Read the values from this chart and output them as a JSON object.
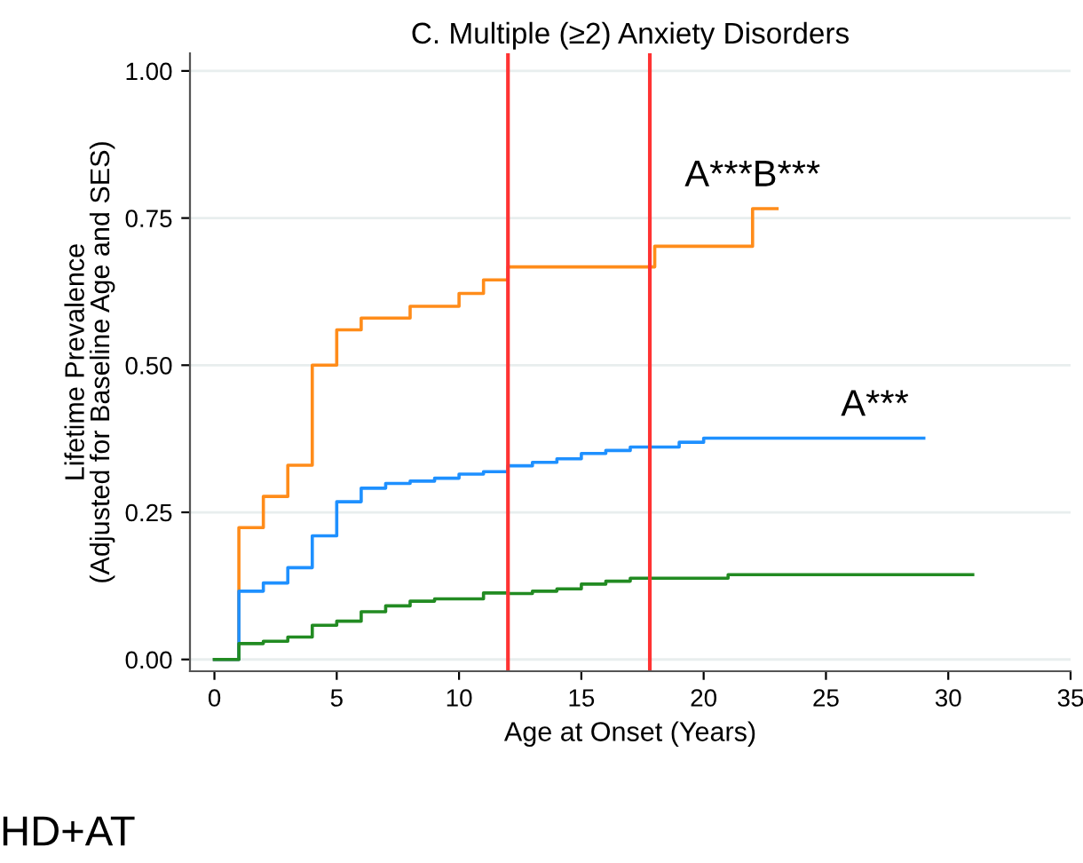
{
  "chart_data": {
    "type": "step",
    "title": "C. Multiple (≥2) Anxiety Disorders",
    "xlabel": "Age at Onset (Years)",
    "ylabel": "Lifetime Prevalence\n(Adjusted for Baseline Age and SES)",
    "xlim": [
      -1,
      35
    ],
    "ylim": [
      -0.02,
      1.03
    ],
    "xticks": [
      0,
      5,
      10,
      15,
      20,
      25,
      30,
      35
    ],
    "yticks": [
      {
        "value": 0,
        "label": "0.00"
      },
      {
        "value": 0.25,
        "label": "0.25"
      },
      {
        "value": 0.5,
        "label": "0.50"
      },
      {
        "value": 0.75,
        "label": "0.75"
      },
      {
        "value": 1,
        "label": "1.00"
      }
    ],
    "grid": "y",
    "legend": false,
    "line_style": "solid",
    "series": [
      {
        "color": "#ff8c1a",
        "x": [
          0,
          1,
          2,
          3,
          4,
          5,
          6,
          8,
          10,
          11,
          12,
          18,
          22,
          23
        ],
        "values": [
          0,
          0.224,
          0.277,
          0.33,
          0.5,
          0.56,
          0.58,
          0.6,
          0.622,
          0.645,
          0.667,
          0.702,
          0.766,
          0.766
        ]
      },
      {
        "color": "#1e90ff",
        "x": [
          0,
          1,
          2,
          3,
          4,
          5,
          6,
          7,
          8,
          9,
          10,
          11,
          12,
          13,
          14,
          15,
          16,
          17,
          19,
          20,
          29
        ],
        "values": [
          0,
          0.116,
          0.13,
          0.156,
          0.21,
          0.268,
          0.291,
          0.299,
          0.303,
          0.308,
          0.315,
          0.319,
          0.329,
          0.335,
          0.341,
          0.35,
          0.355,
          0.361,
          0.369,
          0.376,
          0.376
        ]
      },
      {
        "color": "#228b22",
        "x": [
          0,
          1,
          2,
          3,
          4,
          5,
          6,
          7,
          8,
          9,
          11,
          12,
          13,
          14,
          15,
          16,
          17,
          19,
          21,
          31
        ],
        "values": [
          0,
          0.027,
          0.031,
          0.038,
          0.058,
          0.065,
          0.081,
          0.091,
          0.099,
          0.103,
          0.113,
          0.112,
          0.116,
          0.12,
          0.128,
          0.133,
          0.138,
          0.138,
          0.144,
          0.144
        ]
      }
    ],
    "ref_lines": [
      {
        "axis": "x",
        "value": 12,
        "color": "#ff3333"
      },
      {
        "axis": "x",
        "value": 17.8,
        "color": "#ff3333"
      }
    ],
    "annotations": [
      {
        "text": "A***B***",
        "x": 22,
        "y": 0.766
      },
      {
        "text": "A***",
        "x": 27,
        "y": 0.376
      },
      "HD+AT"
    ]
  }
}
